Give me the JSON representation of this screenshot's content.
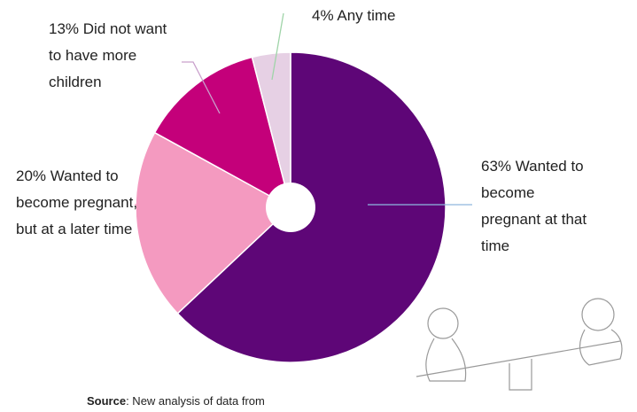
{
  "chart_data": {
    "type": "pie",
    "categories": [
      "Wanted to become pregnant at that time",
      "Wanted to become pregnant, but at a later time",
      "Did not want to have more children",
      "Any time"
    ],
    "values": [
      63,
      20,
      13,
      4
    ],
    "value_labels": [
      "63%",
      "20%",
      "13%",
      "4%"
    ],
    "colors": [
      "#5e0677",
      "#f49ac0",
      "#c4007a",
      "#e6d0e4"
    ],
    "source": {
      "label": "Source",
      "text": ": New analysis of data from"
    }
  }
}
